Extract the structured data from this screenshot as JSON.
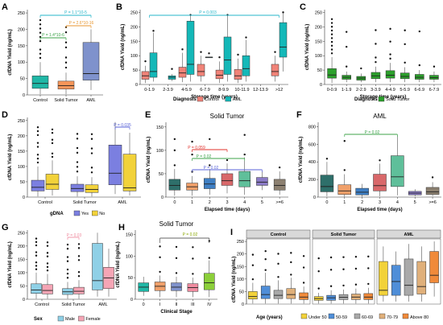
{
  "colors": {
    "control": "#1fb7a6",
    "solid": "#f7965a",
    "aml": "#7f92cc",
    "aml_teal": "#14b8b8",
    "ctrl_salmon": "#f08378",
    "green": "#2ca02c",
    "gdna_yes": "#7b7fe0",
    "gdna_no": "#f2d23a",
    "male": "#8fd0e6",
    "female": "#f5a5b5",
    "tan": "#e8c08a",
    "sig_cyan": "#25b5c9",
    "sig_green": "#3da34a",
    "sig_orange": "#e8962f",
    "sig_red": "#e0302b",
    "sig_blue": "#5a63d8",
    "sig_pink": "#f08ca0",
    "sig_olive": "#8aa800"
  },
  "chart_data": [
    {
      "panel": "A",
      "type": "box",
      "ylabel": "cfDNA Yield (ng/mL)",
      "categories": [
        "Control",
        "Solid Tumor",
        "AML"
      ],
      "ticks": [
        "0",
        "50",
        "100",
        "150",
        "200",
        "250"
      ],
      "ylim": [
        0,
        260
      ],
      "boxes": [
        {
          "q1": 20,
          "med": 35,
          "q3": 58,
          "lo": 2,
          "hi": 100
        },
        {
          "q1": 18,
          "med": 28,
          "q3": 42,
          "lo": 2,
          "hi": 68
        },
        {
          "q1": 45,
          "med": 65,
          "q3": 160,
          "lo": 15,
          "hi": 200
        }
      ],
      "annotations": [
        "P = 1.4*10-6",
        "P = 1.1*10-5",
        "P = 2.6*10-16"
      ]
    },
    {
      "panel": "B",
      "type": "box",
      "ylabel": "cfDNA Yield (ng/mL)",
      "xlabel": "Storage time (years)",
      "categories": [
        "0-1.9",
        "2-3.9",
        "4-5.9",
        "6-7.9",
        "8-9.9",
        "10-11.9",
        "12-13.9",
        ">12"
      ],
      "ticks": [
        "0",
        "50",
        "100",
        "150",
        "200",
        "250"
      ],
      "ylim": [
        0,
        260
      ],
      "series": [
        {
          "name": "Control",
          "boxes": [
            {
              "q1": 18,
              "med": 30,
              "q3": 45,
              "lo": 5,
              "hi": 65
            },
            null,
            {
              "q1": 25,
              "med": 40,
              "q3": 60,
              "lo": 8,
              "hi": 110
            },
            {
              "q1": 30,
              "med": 45,
              "q3": 70,
              "lo": 10,
              "hi": 100
            },
            {
              "q1": 20,
              "med": 32,
              "q3": 50,
              "lo": 5,
              "hi": 80
            },
            {
              "q1": 18,
              "med": 30,
              "q3": 52,
              "lo": 5,
              "hi": 90
            },
            null,
            {
              "q1": 30,
              "med": 45,
              "q3": 70,
              "lo": 10,
              "hi": 100
            }
          ]
        },
        {
          "name": "AML",
          "boxes": [
            {
              "q1": 25,
              "med": 45,
              "q3": 110,
              "lo": 10,
              "hi": 180
            },
            {
              "q1": 18,
              "med": 25,
              "q3": 30,
              "lo": 12,
              "hi": 36
            },
            {
              "q1": 35,
              "med": 70,
              "q3": 220,
              "lo": 10,
              "hi": 240
            },
            {
              "q1": 95,
              "med": 95,
              "q3": 95,
              "lo": 95,
              "hi": 95
            },
            {
              "q1": 35,
              "med": 85,
              "q3": 165,
              "lo": 10,
              "hi": 240
            },
            {
              "q1": 30,
              "med": 55,
              "q3": 100,
              "lo": 10,
              "hi": 155
            },
            null,
            {
              "q1": 95,
              "med": 130,
              "q3": 215,
              "lo": 45,
              "hi": 250
            }
          ]
        }
      ],
      "legend_title": "Diagnosis",
      "legend": [
        "Control",
        "AML"
      ],
      "annotations": [
        "P = 0.003"
      ]
    },
    {
      "panel": "C",
      "type": "box",
      "ylabel": "cfDNA Yield (ng/mL)",
      "xlabel": "Storage time (years)",
      "categories": [
        "0-0.9",
        "1-1.9",
        "2-2.9",
        "3-3.9",
        "4-4.9",
        "5-5.9",
        "6-6.9",
        "6-7.9"
      ],
      "ticks": [
        "0",
        "50",
        "100",
        "150",
        "200",
        "250"
      ],
      "ylim": [
        0,
        260
      ],
      "boxes": [
        {
          "q1": 22,
          "med": 33,
          "q3": 55,
          "lo": 5,
          "hi": 95
        },
        {
          "q1": 18,
          "med": 25,
          "q3": 32,
          "lo": 8,
          "hi": 45
        },
        {
          "q1": 15,
          "med": 22,
          "q3": 28,
          "lo": 8,
          "hi": 38
        },
        {
          "q1": 20,
          "med": 30,
          "q3": 42,
          "lo": 8,
          "hi": 62
        },
        {
          "q1": 22,
          "med": 32,
          "q3": 48,
          "lo": 8,
          "hi": 75
        },
        {
          "q1": 20,
          "med": 28,
          "q3": 40,
          "lo": 8,
          "hi": 60
        },
        {
          "q1": 18,
          "med": 25,
          "q3": 35,
          "lo": 8,
          "hi": 50
        },
        {
          "q1": 18,
          "med": 24,
          "q3": 32,
          "lo": 8,
          "hi": 45
        }
      ],
      "legend_title": "Diagnosis",
      "legend": [
        "Solid Tumor"
      ]
    },
    {
      "panel": "D",
      "type": "box",
      "ylabel": "cfDNA Yield (ng/mL)",
      "categories": [
        "Control",
        "Solid Tumor",
        "AML"
      ],
      "ticks": [
        "0",
        "50",
        "100",
        "150",
        "200",
        "250"
      ],
      "ylim": [
        0,
        260
      ],
      "series": [
        {
          "name": "Yes",
          "boxes": [
            {
              "q1": 20,
              "med": 32,
              "q3": 55,
              "lo": 2,
              "hi": 100
            },
            {
              "q1": 18,
              "med": 28,
              "q3": 42,
              "lo": 2,
              "hi": 68
            },
            {
              "q1": 40,
              "med": 78,
              "q3": 170,
              "lo": 10,
              "hi": 245
            }
          ]
        },
        {
          "name": "No",
          "boxes": [
            {
              "q1": 25,
              "med": 42,
              "q3": 75,
              "lo": 5,
              "hi": 120
            },
            {
              "q1": 15,
              "med": 25,
              "q3": 40,
              "lo": 2,
              "hi": 65
            },
            {
              "q1": 20,
              "med": 30,
              "q3": 140,
              "lo": 5,
              "hi": 210
            }
          ]
        }
      ],
      "legend_title": "gDNA",
      "legend": [
        "Yes",
        "No"
      ],
      "annotations": [
        "P = 0.035"
      ]
    },
    {
      "panel": "E",
      "type": "box",
      "title": "Solid Tumor",
      "ylabel": "cfDNA Yield (ng/mL)",
      "xlabel": "Elapsed time (days)",
      "categories": [
        "0",
        "1",
        "2",
        "3",
        "4",
        "5",
        ">=6"
      ],
      "ticks": [
        "0",
        "50",
        "100",
        "150"
      ],
      "ylim": [
        0,
        160
      ],
      "boxes": [
        {
          "q1": 15,
          "med": 25,
          "q3": 38,
          "lo": 3,
          "hi": 60
        },
        {
          "q1": 15,
          "med": 22,
          "q3": 30,
          "lo": 3,
          "hi": 45
        },
        {
          "q1": 18,
          "med": 28,
          "q3": 40,
          "lo": 5,
          "hi": 60
        },
        {
          "q1": 25,
          "med": 35,
          "q3": 50,
          "lo": 8,
          "hi": 72
        },
        {
          "q1": 22,
          "med": 35,
          "q3": 55,
          "lo": 5,
          "hi": 85
        },
        {
          "q1": 25,
          "med": 32,
          "q3": 42,
          "lo": 15,
          "hi": 55
        },
        {
          "q1": 15,
          "med": 25,
          "q3": 38,
          "lo": 5,
          "hi": 55
        }
      ],
      "annotations": [
        "P = 0.059",
        "P = 0.02",
        "P = 0.02"
      ]
    },
    {
      "panel": "F",
      "type": "box",
      "title": "AML",
      "ylabel": "cfDNA Yield (ng/mL)",
      "xlabel": "Elapsed time (days)",
      "categories": [
        "0",
        "1",
        "2",
        "3",
        "4",
        "5",
        ">=6"
      ],
      "ticks": [
        "0",
        "200",
        "400",
        "600",
        "800"
      ],
      "ylim": [
        0,
        850
      ],
      "boxes": [
        {
          "q1": 60,
          "med": 120,
          "q3": 250,
          "lo": 10,
          "hi": 400
        },
        {
          "q1": 30,
          "med": 70,
          "q3": 140,
          "lo": 5,
          "hi": 260
        },
        {
          "q1": 25,
          "med": 55,
          "q3": 100,
          "lo": 5,
          "hi": 150
        },
        {
          "q1": 70,
          "med": 130,
          "q3": 260,
          "lo": 10,
          "hi": 380
        },
        {
          "q1": 120,
          "med": 230,
          "q3": 470,
          "lo": 20,
          "hi": 700
        },
        {
          "q1": 25,
          "med": 45,
          "q3": 65,
          "lo": 10,
          "hi": 90
        },
        {
          "q1": 30,
          "med": 60,
          "q3": 110,
          "lo": 10,
          "hi": 170
        }
      ],
      "annotations": [
        "P = 0.02"
      ]
    },
    {
      "panel": "G",
      "type": "box",
      "ylabel": "cfDNA Yield (ng/mL)",
      "categories": [
        "Control",
        "Solid Tumor",
        "AML"
      ],
      "ticks": [
        "0",
        "50",
        "100",
        "150",
        "200",
        "250"
      ],
      "ylim": [
        0,
        260
      ],
      "series": [
        {
          "name": "Male",
          "boxes": [
            {
              "q1": 22,
              "med": 35,
              "q3": 58,
              "lo": 2,
              "hi": 100
            },
            {
              "q1": 18,
              "med": 28,
              "q3": 40,
              "lo": 2,
              "hi": 65
            },
            {
              "q1": 35,
              "med": 70,
              "q3": 210,
              "lo": 10,
              "hi": 250
            }
          ]
        },
        {
          "name": "Female",
          "boxes": [
            {
              "q1": 20,
              "med": 33,
              "q3": 55,
              "lo": 2,
              "hi": 95
            },
            {
              "q1": 20,
              "med": 30,
              "q3": 45,
              "lo": 2,
              "hi": 72
            },
            {
              "q1": 40,
              "med": 80,
              "q3": 120,
              "lo": 10,
              "hi": 190
            }
          ]
        }
      ],
      "legend_title": "Sex",
      "legend": [
        "Male",
        "Female"
      ],
      "annotations": [
        "P = 0.03"
      ]
    },
    {
      "panel": "H",
      "type": "box",
      "title": "Solid Tumor",
      "ylabel": "cfDNA Yield (ng/mL)",
      "xlabel": "Clinical Stage",
      "categories": [
        "0",
        "I",
        "II",
        "III",
        "IV"
      ],
      "ticks": [
        "0",
        "50",
        "100",
        "150"
      ],
      "ylim": [
        0,
        160
      ],
      "boxes": [
        {
          "q1": 18,
          "med": 28,
          "q3": 38,
          "lo": 8,
          "hi": 52
        },
        {
          "q1": 20,
          "med": 30,
          "q3": 40,
          "lo": 5,
          "hi": 55
        },
        {
          "q1": 20,
          "med": 28,
          "q3": 38,
          "lo": 5,
          "hi": 52
        },
        {
          "q1": 18,
          "med": 27,
          "q3": 36,
          "lo": 5,
          "hi": 50
        },
        {
          "q1": 22,
          "med": 38,
          "q3": 60,
          "lo": 5,
          "hi": 90
        }
      ],
      "annotations": [
        "P = 0.02"
      ]
    },
    {
      "panel": "I",
      "type": "box",
      "ylabel": "cfDNA Yield (ng/mL)",
      "facets": [
        "Control",
        "Solid Tumor",
        "AML"
      ],
      "ticks": [
        "0",
        "50",
        "100",
        "150",
        "200",
        "250"
      ],
      "ylim": [
        0,
        260
      ],
      "legend_title": "Age (years)",
      "legend": [
        "Under 50",
        "50-59",
        "60-69",
        "70-79",
        "Above 80"
      ],
      "facet_boxes": [
        [
          {
            "q1": 20,
            "med": 30,
            "q3": 50,
            "lo": 2,
            "hi": 85
          },
          {
            "q1": 22,
            "med": 38,
            "q3": 72,
            "lo": 2,
            "hi": 125
          },
          {
            "q1": 22,
            "med": 35,
            "q3": 55,
            "lo": 2,
            "hi": 95
          },
          {
            "q1": 22,
            "med": 38,
            "q3": 62,
            "lo": 2,
            "hi": 105
          },
          {
            "q1": 18,
            "med": 28,
            "q3": 45,
            "lo": 2,
            "hi": 70
          }
        ],
        [
          {
            "q1": 15,
            "med": 22,
            "q3": 30,
            "lo": 2,
            "hi": 45
          },
          {
            "q1": 15,
            "med": 25,
            "q3": 35,
            "lo": 2,
            "hi": 55
          },
          {
            "q1": 18,
            "med": 27,
            "q3": 38,
            "lo": 2,
            "hi": 58
          },
          {
            "q1": 18,
            "med": 28,
            "q3": 40,
            "lo": 2,
            "hi": 62
          },
          {
            "q1": 18,
            "med": 28,
            "q3": 42,
            "lo": 2,
            "hi": 65
          }
        ],
        [
          {
            "q1": 35,
            "med": 55,
            "q3": 170,
            "lo": 10,
            "hi": 230
          },
          {
            "q1": 35,
            "med": 90,
            "q3": 155,
            "lo": 10,
            "hi": 210
          },
          {
            "q1": 35,
            "med": 75,
            "q3": 180,
            "lo": 10,
            "hi": 240
          },
          {
            "q1": 40,
            "med": 70,
            "q3": 170,
            "lo": 10,
            "hi": 230
          },
          {
            "q1": 85,
            "med": 115,
            "q3": 210,
            "lo": 30,
            "hi": 250
          }
        ]
      ]
    }
  ]
}
